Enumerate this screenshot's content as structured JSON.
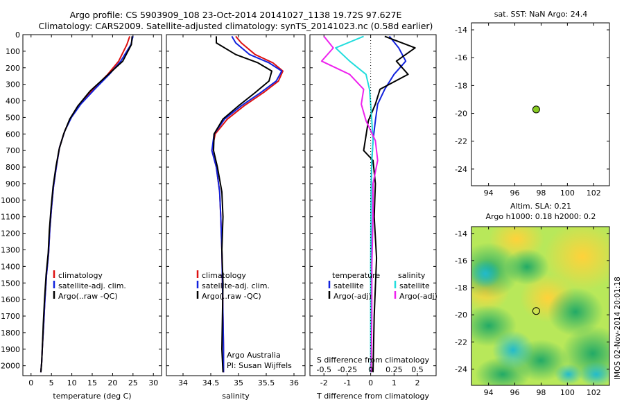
{
  "header": {
    "line1": "Argo profile: CS 5903909_108 23-Oct-2014 20141027_1138 19.72S 97.627E",
    "line2": "Climatology: CARS2009. Satellite-adjusted climatology: synTS_20141023.nc (0.58d earlier)"
  },
  "side_label": "IMOS 02-Nov-2014 20:01:18",
  "colors": {
    "climatology": "#dd1111",
    "satellite": "#1122dd",
    "argo": "#000000",
    "sat_salinity": "#22dddd",
    "argo_salinity": "#ee22ee",
    "dot": "#88cc22"
  },
  "chart_data": [
    {
      "id": "temperature",
      "type": "line",
      "xlabel": "temperature (deg C)",
      "ylabel": "",
      "xlim": [
        -2,
        32
      ],
      "ylim": [
        2060,
        0
      ],
      "xticks": [
        "0",
        "5",
        "10",
        "15",
        "20",
        "25",
        "30"
      ],
      "xtick_values": [
        0,
        5,
        10,
        15,
        20,
        25,
        30
      ],
      "yticks": [
        "0",
        "100",
        "200",
        "300",
        "400",
        "500",
        "600",
        "700",
        "800",
        "900",
        "1000",
        "1100",
        "1200",
        "1300",
        "1400",
        "1500",
        "1600",
        "1700",
        "1800",
        "1900",
        "2000"
      ],
      "ytick_values": [
        0,
        100,
        200,
        300,
        400,
        500,
        600,
        700,
        800,
        900,
        1000,
        1100,
        1200,
        1300,
        1400,
        1500,
        1600,
        1700,
        1800,
        1900,
        2000
      ],
      "legend": [
        "climatology",
        "satellite-adj. clim.",
        "Argo(..raw -QC)"
      ],
      "series": [
        {
          "name": "climatology",
          "color": "#dd1111",
          "x": [
            24.2,
            23.5,
            21.5,
            18.8,
            15.2,
            12.0,
            9.8,
            8.3,
            7.0,
            6.2,
            5.5,
            5.0,
            4.6,
            4.3,
            3.8,
            3.4,
            3.1,
            2.8,
            2.6,
            2.4
          ],
          "y": [
            10,
            60,
            160,
            240,
            330,
            420,
            500,
            580,
            680,
            800,
            920,
            1050,
            1180,
            1320,
            1450,
            1600,
            1750,
            1880,
            1980,
            2040
          ]
        },
        {
          "name": "satellite-adj. clim.",
          "color": "#1122dd",
          "x": [
            25.0,
            24.5,
            22.0,
            19.2,
            15.6,
            12.2,
            9.9,
            8.3,
            7.0,
            6.2,
            5.5,
            5.0,
            4.6,
            4.3,
            3.8,
            3.4,
            3.1,
            2.8,
            2.6,
            2.4
          ],
          "y": [
            10,
            60,
            160,
            240,
            330,
            420,
            500,
            580,
            680,
            800,
            920,
            1050,
            1180,
            1320,
            1450,
            1600,
            1750,
            1880,
            1980,
            2040
          ]
        },
        {
          "name": "Argo(..raw -QC)",
          "color": "#000000",
          "x": [
            24.8,
            24.6,
            22.5,
            18.5,
            14.5,
            11.5,
            9.5,
            8.0,
            6.9,
            6.1,
            5.4,
            4.9,
            4.5,
            4.2,
            3.7,
            3.3,
            3.0,
            2.8,
            2.6,
            2.4
          ],
          "y": [
            10,
            60,
            160,
            250,
            340,
            430,
            510,
            600,
            690,
            800,
            920,
            1050,
            1180,
            1320,
            1450,
            1600,
            1750,
            1880,
            1980,
            2040
          ]
        }
      ]
    },
    {
      "id": "salinity",
      "type": "line",
      "xlabel": "salinity",
      "xlim": [
        33.7,
        36.2
      ],
      "ylim": [
        2060,
        0
      ],
      "xticks": [
        "34",
        "34.5",
        "35",
        "35.5",
        "36"
      ],
      "xtick_values": [
        34,
        34.5,
        35,
        35.5,
        36
      ],
      "legend": [
        "climatology",
        "satellite-adj. clim.",
        "Argo(..raw -QC)"
      ],
      "annotation": [
        "Argo Australia",
        "PI: Susan Wijffels"
      ],
      "series": [
        {
          "name": "climatology",
          "color": "#dd1111",
          "x": [
            34.95,
            35.05,
            35.3,
            35.62,
            35.8,
            35.72,
            35.45,
            35.1,
            34.8,
            34.58,
            34.52,
            34.6,
            34.66,
            34.68,
            34.7,
            34.71,
            34.72,
            34.73,
            34.73
          ],
          "y": [
            10,
            50,
            120,
            170,
            220,
            280,
            350,
            430,
            510,
            600,
            700,
            800,
            950,
            1100,
            1300,
            1500,
            1700,
            1900,
            2040
          ]
        },
        {
          "name": "satellite-adj. clim.",
          "color": "#1122dd",
          "x": [
            34.88,
            34.95,
            35.2,
            35.55,
            35.78,
            35.68,
            35.4,
            35.05,
            34.75,
            34.56,
            34.52,
            34.6,
            34.66,
            34.68,
            34.7,
            34.71,
            34.72,
            34.73,
            34.73
          ],
          "y": [
            10,
            50,
            120,
            170,
            220,
            280,
            350,
            430,
            510,
            600,
            700,
            800,
            950,
            1100,
            1300,
            1500,
            1700,
            1900,
            2040
          ]
        },
        {
          "name": "Argo(..raw -QC)",
          "color": "#000000",
          "x": [
            34.6,
            34.6,
            34.95,
            35.35,
            35.6,
            35.55,
            35.3,
            35.0,
            34.72,
            34.56,
            34.55,
            34.62,
            34.7,
            34.72,
            34.7,
            34.72,
            34.71,
            34.7,
            34.72
          ],
          "y": [
            10,
            50,
            120,
            170,
            220,
            280,
            350,
            430,
            510,
            600,
            700,
            800,
            950,
            1100,
            1300,
            1500,
            1700,
            1900,
            2040
          ]
        }
      ]
    },
    {
      "id": "difference",
      "type": "line",
      "xlabel": "T difference from climatology",
      "xlabel_top": "S difference from climatology",
      "xlim": [
        -2.6,
        2.8
      ],
      "ylim": [
        2060,
        0
      ],
      "xticks": [
        "-2",
        "-1",
        "0",
        "1",
        "2"
      ],
      "xtick_values": [
        -2,
        -1,
        0,
        1,
        2
      ],
      "sticks": [
        "-0.5",
        "-0.25",
        "0",
        "0.25",
        "0.5"
      ],
      "stick_values": [
        -2,
        -1,
        0,
        1,
        2
      ],
      "legend_left": [
        "temperature",
        "satellite",
        "Argo(-adj)"
      ],
      "legend_right": [
        "salinity",
        "satellite",
        "Argo(-adj)"
      ],
      "series": [
        {
          "name": "temperature satellite",
          "color": "#1122dd",
          "x": [
            0.8,
            1.2,
            1.5,
            1.0,
            0.6,
            0.3,
            0.2,
            0.1,
            0.05,
            0.03,
            0.02,
            0.01,
            0.01,
            0.01
          ],
          "y": [
            10,
            80,
            160,
            240,
            330,
            420,
            520,
            640,
            760,
            900,
            1100,
            1400,
            1700,
            2040
          ]
        },
        {
          "name": "temperature Argo(-adj)",
          "color": "#000000",
          "x": [
            0.6,
            1.9,
            1.1,
            1.6,
            0.4,
            0.2,
            -0.1,
            -0.3,
            0.1,
            0.2,
            0.15,
            0.25,
            0.15,
            0.1
          ],
          "y": [
            10,
            80,
            160,
            240,
            330,
            420,
            520,
            700,
            760,
            900,
            1100,
            1350,
            1700,
            2040
          ]
        },
        {
          "name": "salinity satellite",
          "color": "#22dddd",
          "x": [
            -0.3,
            -1.5,
            -0.9,
            -0.2,
            -0.05,
            0.0,
            0.05,
            0.1,
            0.05,
            0.02,
            0.01,
            0.0,
            0.0,
            0.0
          ],
          "y": [
            10,
            80,
            160,
            240,
            330,
            420,
            520,
            640,
            760,
            900,
            1100,
            1400,
            1700,
            2040
          ]
        },
        {
          "name": "salinity Argo(-adj)",
          "color": "#ee22ee",
          "x": [
            -2.0,
            -1.6,
            -2.1,
            -0.9,
            -0.3,
            -0.4,
            -0.2,
            0.2,
            0.3,
            0.1,
            0.1,
            0.05,
            0.05,
            0.02
          ],
          "y": [
            10,
            80,
            160,
            240,
            330,
            420,
            520,
            640,
            760,
            900,
            1100,
            1400,
            1700,
            2040
          ]
        }
      ]
    },
    {
      "id": "map_sst",
      "type": "scatter",
      "title": "sat. SST: NaN Argo: 24.4",
      "xlim": [
        92.7,
        103.2
      ],
      "ylim": [
        -25.2,
        -13.5
      ],
      "xticks": [
        "94",
        "96",
        "98",
        "100",
        "102"
      ],
      "xtick_values": [
        94,
        96,
        98,
        100,
        102
      ],
      "yticks": [
        "-14",
        "-16",
        "-18",
        "-20",
        "-22",
        "-24"
      ],
      "ytick_values": [
        -14,
        -16,
        -18,
        -20,
        -22,
        -24
      ],
      "points": [
        {
          "x": 97.627,
          "y": -19.72
        }
      ]
    },
    {
      "id": "map_sla",
      "type": "heatmap",
      "title_lines": [
        "Altim. SLA: 0.21",
        "Argo h1000: 0.18 h2000: 0.2"
      ],
      "xlim": [
        92.7,
        103.2
      ],
      "ylim": [
        -25.2,
        -13.5
      ],
      "xticks": [
        "94",
        "96",
        "98",
        "100",
        "102"
      ],
      "xtick_values": [
        94,
        96,
        98,
        100,
        102
      ],
      "yticks": [
        "-14",
        "-16",
        "-18",
        "-20",
        "-22",
        "-24"
      ],
      "ytick_values": [
        -14,
        -16,
        -18,
        -20,
        -22,
        -24
      ],
      "points": [
        {
          "x": 97.627,
          "y": -19.72
        }
      ]
    }
  ]
}
